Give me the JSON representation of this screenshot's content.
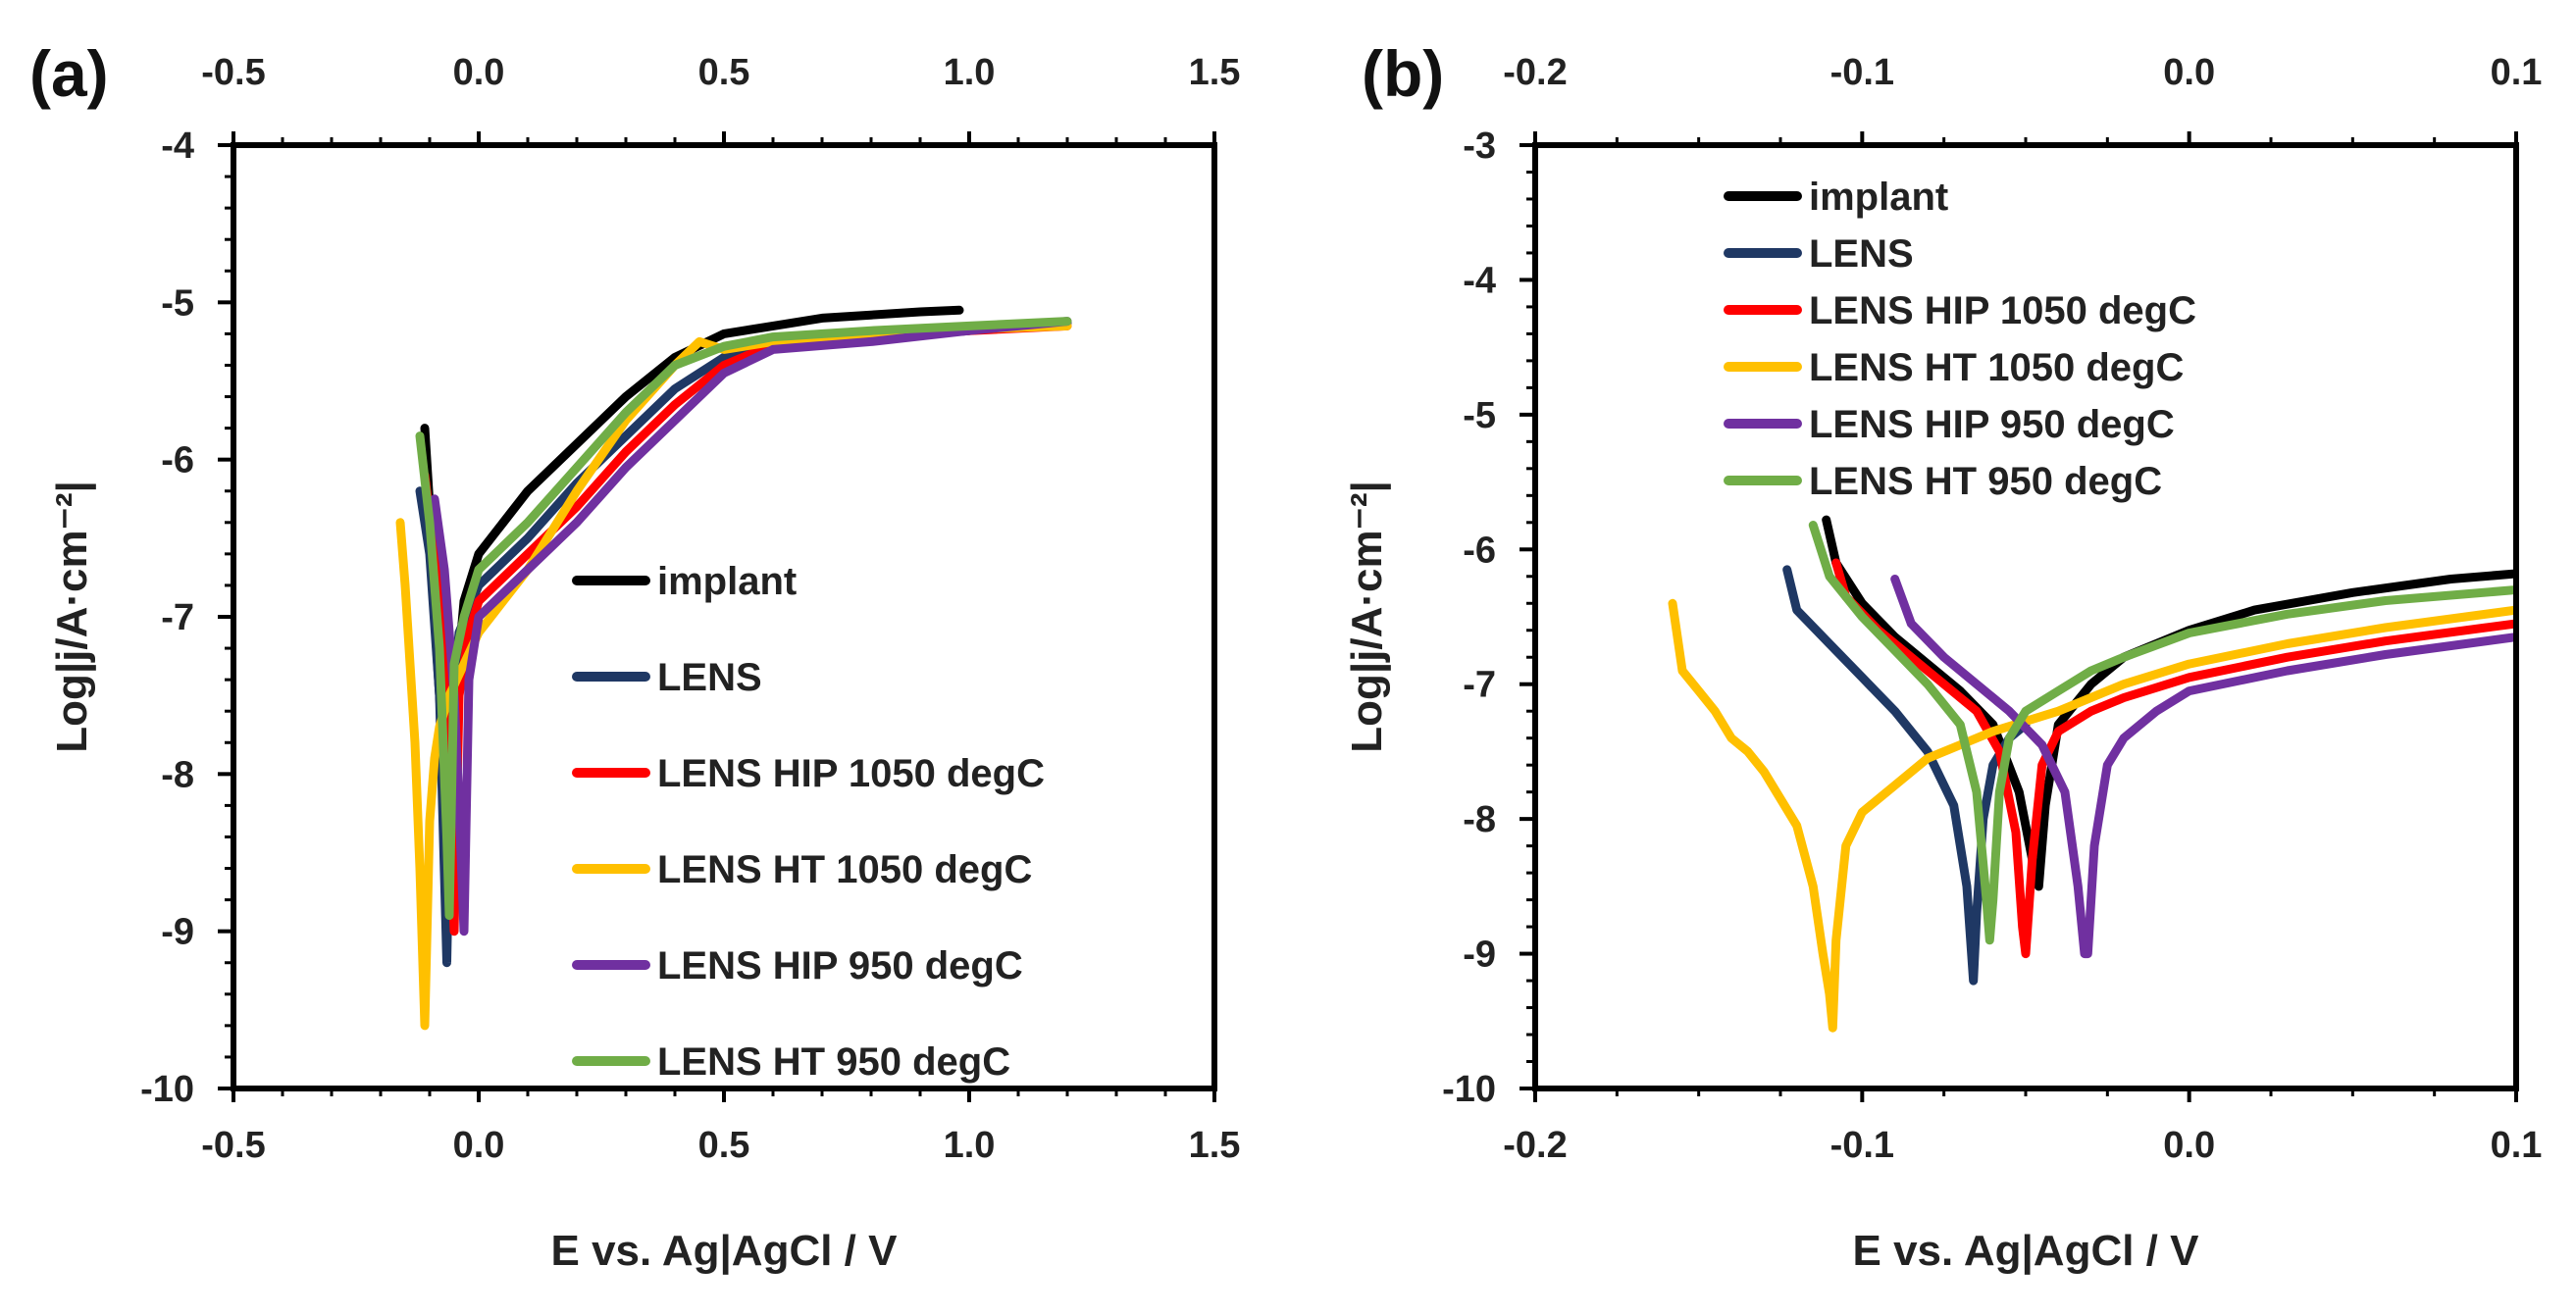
{
  "colors": {
    "implant": "#000000",
    "LENS": "#1f3864",
    "LENS HIP 1050 degC": "#ff0000",
    "LENS HT 1050 degC": "#ffc000",
    "LENS HIP 950 degC": "#7030a0",
    "LENS HT 950 degC": "#70ad47"
  },
  "chart_data": [
    {
      "panel_label": "(a)",
      "type": "line",
      "xlabel": "E vs. Ag|AgCl / V",
      "ylabel": "Log|j/A·cm⁻²|",
      "xlim": [
        -0.5,
        1.5
      ],
      "ylim": [
        -10,
        -4
      ],
      "x_ticks": [
        "-0.5",
        "0.0",
        "0.5",
        "1.0",
        "1.5"
      ],
      "y_ticks": [
        "-4",
        "-5",
        "-6",
        "-7",
        "-8",
        "-9",
        "-10"
      ],
      "legend": [
        "implant",
        "LENS",
        "LENS HIP 1050 degC",
        "LENS HT 1050 degC",
        "LENS HIP 950 degC",
        "LENS HT 950 degC"
      ],
      "legend_position": "lower-right",
      "series": [
        {
          "name": "implant",
          "x": [
            -0.11,
            -0.1,
            -0.09,
            -0.07,
            -0.05,
            -0.03,
            0.0,
            0.05,
            0.1,
            0.2,
            0.3,
            0.4,
            0.5,
            0.6,
            0.7,
            0.8,
            0.9,
            0.98
          ],
          "y": [
            -5.8,
            -6.3,
            -7.0,
            -8.0,
            -7.6,
            -6.9,
            -6.6,
            -6.4,
            -6.2,
            -5.9,
            -5.6,
            -5.35,
            -5.2,
            -5.15,
            -5.1,
            -5.08,
            -5.06,
            -5.05
          ]
        },
        {
          "name": "LENS",
          "x": [
            -0.12,
            -0.1,
            -0.08,
            -0.065,
            -0.055,
            -0.04,
            0.0,
            0.1,
            0.2,
            0.3,
            0.4,
            0.5,
            0.6,
            0.7,
            0.8,
            0.9,
            1.0,
            1.1,
            1.2
          ],
          "y": [
            -6.2,
            -6.6,
            -7.5,
            -9.2,
            -7.6,
            -7.1,
            -6.8,
            -6.5,
            -6.15,
            -5.85,
            -5.55,
            -5.35,
            -5.28,
            -5.25,
            -5.22,
            -5.2,
            -5.18,
            -5.15,
            -5.13
          ]
        },
        {
          "name": "LENS HIP 1050 degC",
          "x": [
            -0.11,
            -0.09,
            -0.07,
            -0.05,
            -0.04,
            -0.02,
            0.0,
            0.1,
            0.2,
            0.3,
            0.4,
            0.5,
            0.6,
            0.8,
            1.0,
            1.2
          ],
          "y": [
            -6.1,
            -6.6,
            -7.3,
            -9.0,
            -7.5,
            -7.1,
            -6.9,
            -6.6,
            -6.3,
            -5.95,
            -5.65,
            -5.4,
            -5.27,
            -5.22,
            -5.18,
            -5.15
          ]
        },
        {
          "name": "LENS HT 1050 degC",
          "x": [
            -0.16,
            -0.15,
            -0.14,
            -0.13,
            -0.12,
            -0.11,
            -0.1,
            -0.09,
            -0.08,
            -0.06,
            -0.03,
            0.0,
            0.1,
            0.2,
            0.3,
            0.4,
            0.45,
            0.5,
            0.6,
            0.8,
            1.0,
            1.2
          ],
          "y": [
            -6.4,
            -6.8,
            -7.3,
            -7.8,
            -8.6,
            -9.6,
            -8.3,
            -7.9,
            -7.7,
            -7.5,
            -7.3,
            -7.1,
            -6.7,
            -6.2,
            -5.75,
            -5.4,
            -5.25,
            -5.3,
            -5.25,
            -5.2,
            -5.17,
            -5.15
          ]
        },
        {
          "name": "LENS HIP 950 degC",
          "x": [
            -0.09,
            -0.07,
            -0.05,
            -0.04,
            -0.03,
            -0.02,
            0.0,
            0.1,
            0.2,
            0.3,
            0.4,
            0.5,
            0.6,
            0.8,
            1.0,
            1.2
          ],
          "y": [
            -6.25,
            -6.7,
            -7.5,
            -8.2,
            -9.0,
            -7.4,
            -7.0,
            -6.7,
            -6.4,
            -6.05,
            -5.75,
            -5.45,
            -5.3,
            -5.25,
            -5.18,
            -5.12
          ]
        },
        {
          "name": "LENS HT 950 degC",
          "x": [
            -0.12,
            -0.1,
            -0.08,
            -0.065,
            -0.06,
            -0.05,
            -0.03,
            0.0,
            0.1,
            0.2,
            0.3,
            0.4,
            0.5,
            0.6,
            0.8,
            1.0,
            1.2
          ],
          "y": [
            -5.85,
            -6.4,
            -7.2,
            -8.4,
            -8.9,
            -7.3,
            -7.0,
            -6.7,
            -6.4,
            -6.05,
            -5.7,
            -5.4,
            -5.28,
            -5.22,
            -5.18,
            -5.15,
            -5.12
          ]
        }
      ]
    },
    {
      "panel_label": "(b)",
      "type": "line",
      "xlabel": "E vs. Ag|AgCl / V",
      "ylabel": "Log|j/A·cm⁻²|",
      "xlim": [
        -0.2,
        0.1
      ],
      "ylim": [
        -10,
        -3
      ],
      "x_ticks": [
        "-0.2",
        "-0.1",
        "0.0",
        "0.1"
      ],
      "y_ticks": [
        "-3",
        "-4",
        "-5",
        "-6",
        "-7",
        "-8",
        "-9",
        "-10"
      ],
      "legend": [
        "implant",
        "LENS",
        "LENS HIP 1050 degC",
        "LENS HT 1050 degC",
        "LENS HIP 950 degC",
        "LENS HT 950 degC"
      ],
      "legend_position": "top-left",
      "series": [
        {
          "name": "implant",
          "x": [
            -0.111,
            -0.108,
            -0.1,
            -0.09,
            -0.08,
            -0.07,
            -0.06,
            -0.052,
            -0.048,
            -0.046,
            -0.044,
            -0.04,
            -0.03,
            -0.02,
            0.0,
            0.02,
            0.05,
            0.08,
            0.1
          ],
          "y": [
            -5.78,
            -6.1,
            -6.4,
            -6.65,
            -6.85,
            -7.05,
            -7.3,
            -7.8,
            -8.3,
            -8.5,
            -7.9,
            -7.3,
            -7.0,
            -6.8,
            -6.6,
            -6.45,
            -6.32,
            -6.22,
            -6.18
          ]
        },
        {
          "name": "LENS",
          "x": [
            -0.123,
            -0.12,
            -0.11,
            -0.1,
            -0.09,
            -0.08,
            -0.072,
            -0.068,
            -0.066,
            -0.065,
            -0.063,
            -0.06,
            -0.055,
            -0.05
          ],
          "y": [
            -6.15,
            -6.45,
            -6.7,
            -6.95,
            -7.2,
            -7.5,
            -7.9,
            -8.5,
            -9.2,
            -8.7,
            -8.0,
            -7.6,
            -7.4,
            -7.3
          ]
        },
        {
          "name": "LENS HIP 1050 degC",
          "x": [
            -0.108,
            -0.105,
            -0.095,
            -0.085,
            -0.075,
            -0.065,
            -0.058,
            -0.053,
            -0.051,
            -0.05,
            -0.048,
            -0.045,
            -0.04,
            -0.03,
            -0.02,
            0.0,
            0.03,
            0.06,
            0.1
          ],
          "y": [
            -6.1,
            -6.35,
            -6.6,
            -6.8,
            -7.0,
            -7.2,
            -7.5,
            -8.1,
            -8.8,
            -9.0,
            -8.3,
            -7.6,
            -7.35,
            -7.2,
            -7.1,
            -6.95,
            -6.8,
            -6.68,
            -6.55
          ]
        },
        {
          "name": "LENS HT 1050 degC",
          "x": [
            -0.158,
            -0.155,
            -0.15,
            -0.145,
            -0.14,
            -0.135,
            -0.13,
            -0.125,
            -0.12,
            -0.115,
            -0.112,
            -0.11,
            -0.109,
            -0.108,
            -0.105,
            -0.1,
            -0.09,
            -0.08,
            -0.07,
            -0.06,
            -0.04,
            -0.02,
            0.0,
            0.03,
            0.06,
            0.1
          ],
          "y": [
            -6.4,
            -6.9,
            -7.05,
            -7.2,
            -7.4,
            -7.5,
            -7.65,
            -7.85,
            -8.05,
            -8.5,
            -9.0,
            -9.3,
            -9.55,
            -8.9,
            -8.2,
            -7.95,
            -7.75,
            -7.55,
            -7.45,
            -7.35,
            -7.2,
            -7.0,
            -6.85,
            -6.7,
            -6.58,
            -6.45
          ]
        },
        {
          "name": "LENS HIP 950 degC",
          "x": [
            -0.09,
            -0.085,
            -0.075,
            -0.065,
            -0.055,
            -0.045,
            -0.038,
            -0.034,
            -0.032,
            -0.031,
            -0.029,
            -0.025,
            -0.02,
            -0.01,
            0.0,
            0.03,
            0.06,
            0.1
          ],
          "y": [
            -6.22,
            -6.55,
            -6.8,
            -7.0,
            -7.2,
            -7.45,
            -7.8,
            -8.5,
            -9.0,
            -9.0,
            -8.2,
            -7.6,
            -7.4,
            -7.2,
            -7.05,
            -6.9,
            -6.78,
            -6.65
          ]
        },
        {
          "name": "LENS HT 950 degC",
          "x": [
            -0.115,
            -0.11,
            -0.1,
            -0.09,
            -0.08,
            -0.07,
            -0.065,
            -0.062,
            -0.061,
            -0.06,
            -0.058,
            -0.055,
            -0.05,
            -0.04,
            -0.03,
            -0.02,
            0.0,
            0.03,
            0.06,
            0.1
          ],
          "y": [
            -5.82,
            -6.2,
            -6.5,
            -6.75,
            -7.0,
            -7.3,
            -7.8,
            -8.6,
            -8.9,
            -8.6,
            -7.8,
            -7.4,
            -7.2,
            -7.05,
            -6.9,
            -6.8,
            -6.62,
            -6.48,
            -6.38,
            -6.3
          ]
        }
      ]
    }
  ]
}
